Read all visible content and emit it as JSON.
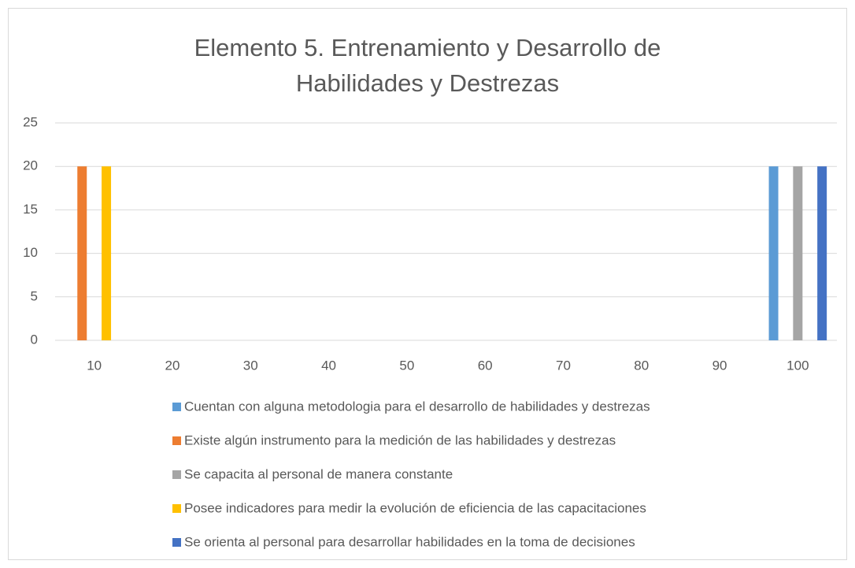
{
  "chart_data": {
    "type": "bar",
    "title": "Elemento 5. Entrenamiento y Desarrollo de Habilidades y Destrezas",
    "categories": [
      10,
      20,
      30,
      40,
      50,
      60,
      70,
      80,
      90,
      100
    ],
    "series": [
      {
        "name": "Cuentan con alguna metodologia para el desarrollo de habilidades y destrezas",
        "color": "#5b9bd5",
        "values": [
          0,
          0,
          0,
          0,
          0,
          0,
          0,
          0,
          0,
          20
        ]
      },
      {
        "name": "Existe algún instrumento para la medición de las habilidades y destrezas",
        "color": "#ed7d31",
        "values": [
          20,
          0,
          0,
          0,
          0,
          0,
          0,
          0,
          0,
          0
        ]
      },
      {
        "name": "Se capacita al personal de manera constante",
        "color": "#a5a5a5",
        "values": [
          0,
          0,
          0,
          0,
          0,
          0,
          0,
          0,
          0,
          20
        ]
      },
      {
        "name": "Posee indicadores para medir la evolución de eficiencia de las capacitaciones",
        "color": "#ffc000",
        "values": [
          20,
          0,
          0,
          0,
          0,
          0,
          0,
          0,
          0,
          0
        ]
      },
      {
        "name": "Se orienta al personal para desarrollar habilidades en la toma de decisiones",
        "color": "#4472c4",
        "values": [
          0,
          0,
          0,
          0,
          0,
          0,
          0,
          0,
          0,
          20
        ]
      }
    ],
    "ylim": [
      0,
      25
    ],
    "yticks": [
      0,
      5,
      10,
      15,
      20,
      25
    ],
    "grid": true,
    "legend": "bottom"
  }
}
